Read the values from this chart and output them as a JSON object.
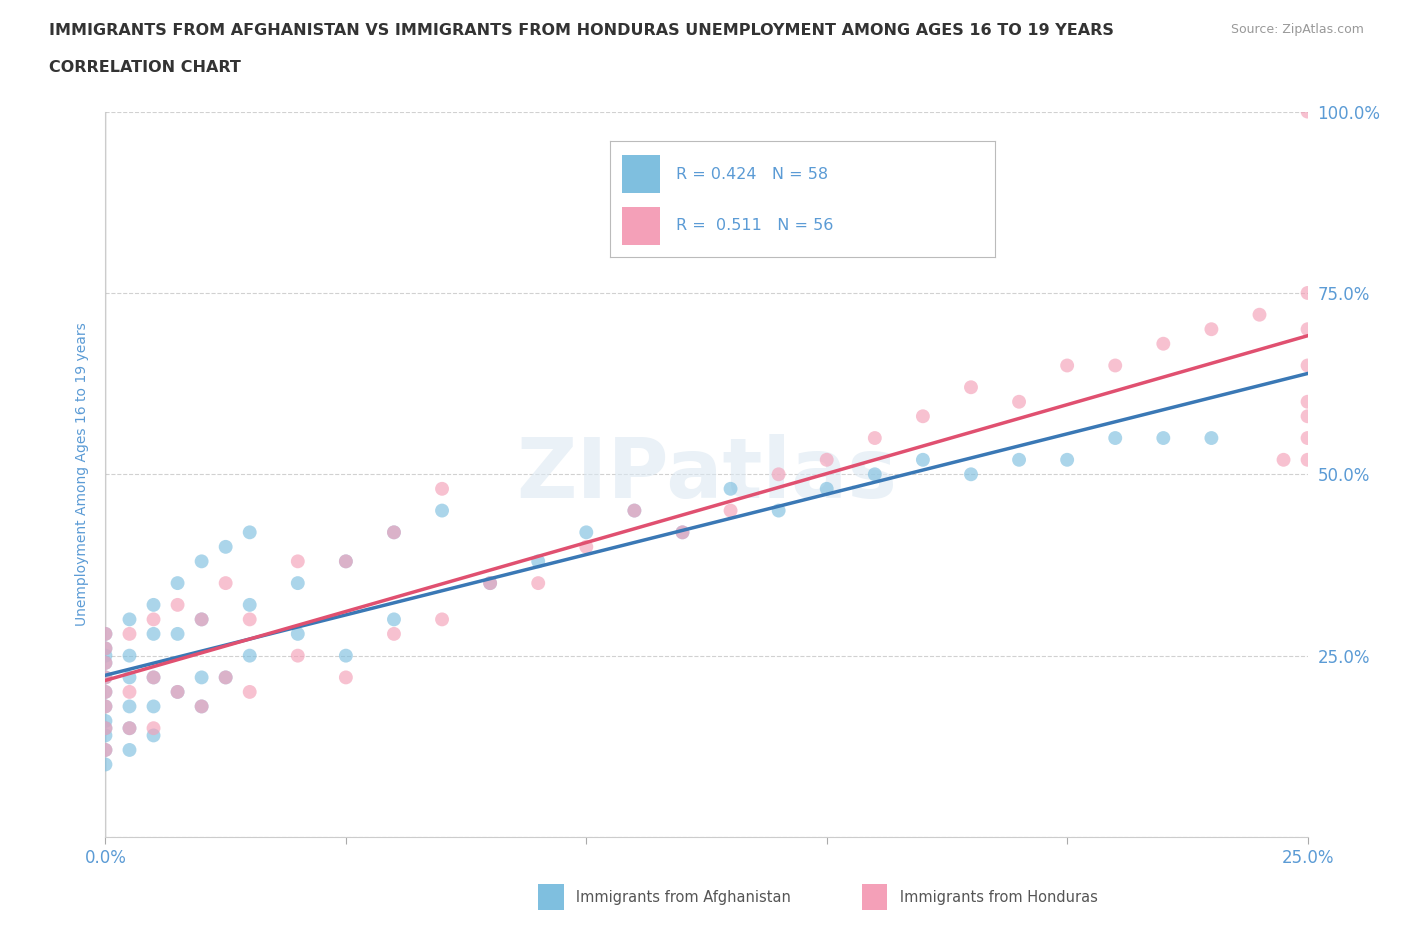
{
  "title_line1": "IMMIGRANTS FROM AFGHANISTAN VS IMMIGRANTS FROM HONDURAS UNEMPLOYMENT AMONG AGES 16 TO 19 YEARS",
  "title_line2": "CORRELATION CHART",
  "source_text": "Source: ZipAtlas.com",
  "ylabel": "Unemployment Among Ages 16 to 19 years",
  "xlim": [
    0.0,
    0.25
  ],
  "ylim": [
    0.0,
    1.0
  ],
  "xticks": [
    0.0,
    0.05,
    0.1,
    0.15,
    0.2,
    0.25
  ],
  "yticks": [
    0.0,
    0.25,
    0.5,
    0.75,
    1.0
  ],
  "xtick_labels": [
    "0.0%",
    "",
    "",
    "",
    "",
    "25.0%"
  ],
  "ytick_labels_right": [
    "",
    "25.0%",
    "50.0%",
    "75.0%",
    "100.0%"
  ],
  "afghanistan_R": 0.424,
  "afghanistan_N": 58,
  "honduras_R": 0.511,
  "honduras_N": 56,
  "afghanistan_color": "#7fbfdf",
  "honduras_color": "#f4a0b8",
  "afghanistan_line_color": "#3a78b5",
  "honduras_line_color": "#e05070",
  "title_color": "#333333",
  "axis_label_color": "#5b9bd5",
  "tick_label_color": "#5b9bd5",
  "legend_color": "#5b9bd5",
  "afghanistan_x": [
    0.0,
    0.0,
    0.0,
    0.0,
    0.0,
    0.0,
    0.0,
    0.0,
    0.0,
    0.0,
    0.0,
    0.0,
    0.005,
    0.005,
    0.005,
    0.005,
    0.005,
    0.005,
    0.01,
    0.01,
    0.01,
    0.01,
    0.01,
    0.015,
    0.015,
    0.015,
    0.02,
    0.02,
    0.02,
    0.02,
    0.025,
    0.025,
    0.03,
    0.03,
    0.03,
    0.04,
    0.04,
    0.05,
    0.05,
    0.06,
    0.06,
    0.07,
    0.08,
    0.09,
    0.1,
    0.11,
    0.12,
    0.13,
    0.14,
    0.15,
    0.16,
    0.17,
    0.18,
    0.19,
    0.2,
    0.21,
    0.22,
    0.23
  ],
  "afghanistan_y": [
    0.1,
    0.12,
    0.14,
    0.15,
    0.16,
    0.18,
    0.2,
    0.22,
    0.24,
    0.25,
    0.26,
    0.28,
    0.12,
    0.15,
    0.18,
    0.22,
    0.25,
    0.3,
    0.14,
    0.18,
    0.22,
    0.28,
    0.32,
    0.2,
    0.28,
    0.35,
    0.18,
    0.22,
    0.3,
    0.38,
    0.22,
    0.4,
    0.25,
    0.32,
    0.42,
    0.28,
    0.35,
    0.25,
    0.38,
    0.3,
    0.42,
    0.45,
    0.35,
    0.38,
    0.42,
    0.45,
    0.42,
    0.48,
    0.45,
    0.48,
    0.5,
    0.52,
    0.5,
    0.52,
    0.52,
    0.55,
    0.55,
    0.55
  ],
  "honduras_x": [
    0.0,
    0.0,
    0.0,
    0.0,
    0.0,
    0.0,
    0.0,
    0.0,
    0.005,
    0.005,
    0.005,
    0.01,
    0.01,
    0.01,
    0.015,
    0.015,
    0.02,
    0.02,
    0.025,
    0.025,
    0.03,
    0.03,
    0.04,
    0.04,
    0.05,
    0.05,
    0.06,
    0.06,
    0.07,
    0.07,
    0.08,
    0.09,
    0.1,
    0.11,
    0.12,
    0.13,
    0.14,
    0.15,
    0.16,
    0.17,
    0.18,
    0.19,
    0.2,
    0.21,
    0.22,
    0.23,
    0.24,
    0.245,
    0.25,
    0.25,
    0.25,
    0.25,
    0.25,
    0.25,
    0.25,
    0.25
  ],
  "honduras_y": [
    0.12,
    0.15,
    0.18,
    0.2,
    0.22,
    0.24,
    0.26,
    0.28,
    0.15,
    0.2,
    0.28,
    0.15,
    0.22,
    0.3,
    0.2,
    0.32,
    0.18,
    0.3,
    0.22,
    0.35,
    0.2,
    0.3,
    0.25,
    0.38,
    0.22,
    0.38,
    0.28,
    0.42,
    0.3,
    0.48,
    0.35,
    0.35,
    0.4,
    0.45,
    0.42,
    0.45,
    0.5,
    0.52,
    0.55,
    0.58,
    0.62,
    0.6,
    0.65,
    0.65,
    0.68,
    0.7,
    0.72,
    0.52,
    0.55,
    0.58,
    0.6,
    0.65,
    0.7,
    0.75,
    1.0,
    0.52
  ]
}
